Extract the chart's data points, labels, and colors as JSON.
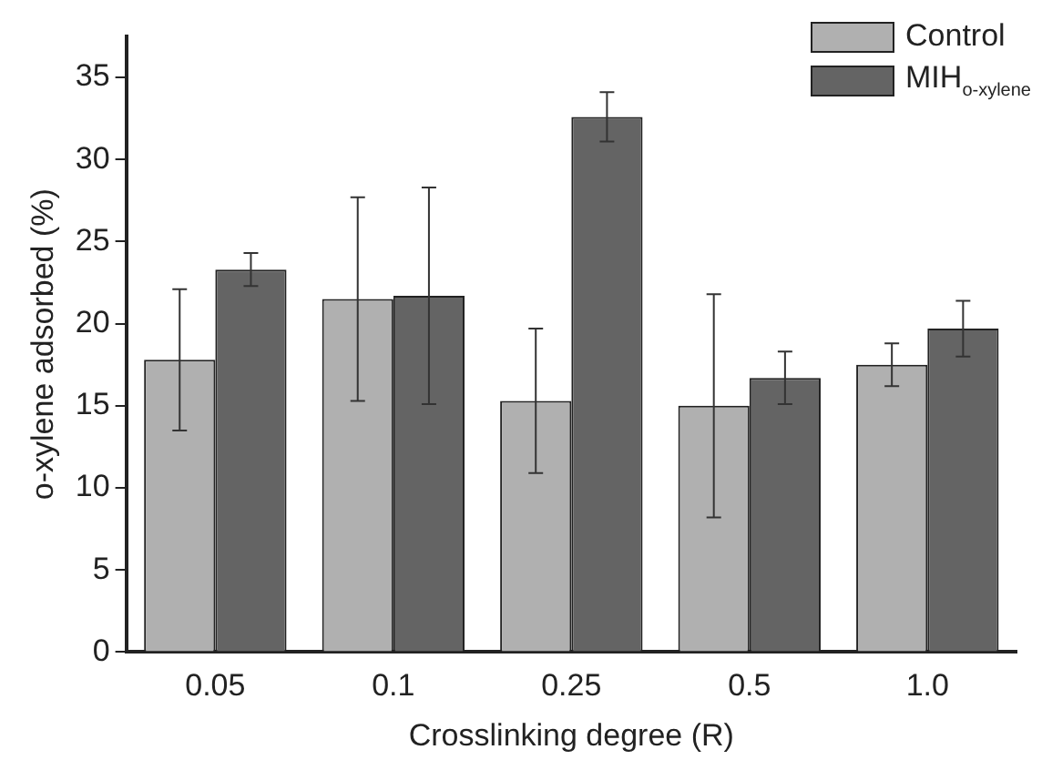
{
  "chart_data": {
    "type": "bar",
    "xlabel": "Crosslinking degree (R)",
    "ylabel": "o-xylene adsorbed (%)",
    "categories": [
      "0.05",
      "0.1",
      "0.25",
      "0.5",
      "1.0"
    ],
    "series": [
      {
        "name": "Control",
        "color": "#b0b0b0",
        "values": [
          17.8,
          21.5,
          15.3,
          15.0,
          17.5
        ],
        "errors": [
          4.3,
          6.2,
          4.4,
          6.8,
          1.3
        ]
      },
      {
        "name": "MIH$_{o-xylene}$",
        "color": "#646464",
        "values": [
          23.3,
          21.7,
          32.6,
          16.7,
          19.7
        ],
        "errors": [
          1.0,
          6.6,
          1.5,
          1.6,
          1.7
        ]
      }
    ],
    "ylim": [
      0,
      37.5
    ],
    "yticks": [
      0,
      5,
      10,
      15,
      20,
      25,
      30,
      35
    ],
    "grid": false,
    "legend": "top right"
  }
}
